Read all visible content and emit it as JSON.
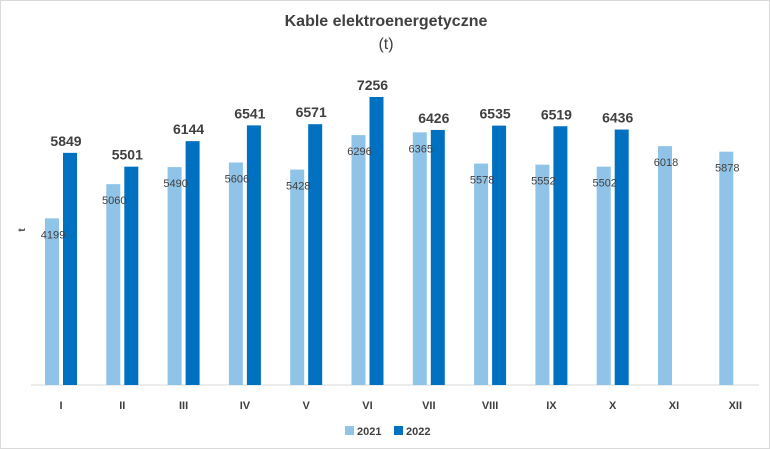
{
  "chart_data": {
    "type": "bar",
    "title": "Kable elektroenergetyczne",
    "subtitle": "(t)",
    "ylabel": "t",
    "xlabel": "",
    "categories": [
      "I",
      "II",
      "III",
      "IV",
      "V",
      "VI",
      "VII",
      "VIII",
      "IX",
      "X",
      "XI",
      "XII"
    ],
    "series": [
      {
        "name": "2021",
        "color": "#8fc3e8",
        "values": [
          4199,
          5060,
          5490,
          5606,
          5428,
          6296,
          6365,
          5578,
          5552,
          5502,
          6018,
          5878
        ]
      },
      {
        "name": "2022",
        "color": "#0070c0",
        "values": [
          5849,
          5501,
          6144,
          6541,
          6571,
          7256,
          6426,
          6535,
          6519,
          6436,
          null,
          null
        ]
      }
    ],
    "ylim": [
      0,
      8000
    ],
    "grid": false,
    "legend": "bottom-center"
  }
}
